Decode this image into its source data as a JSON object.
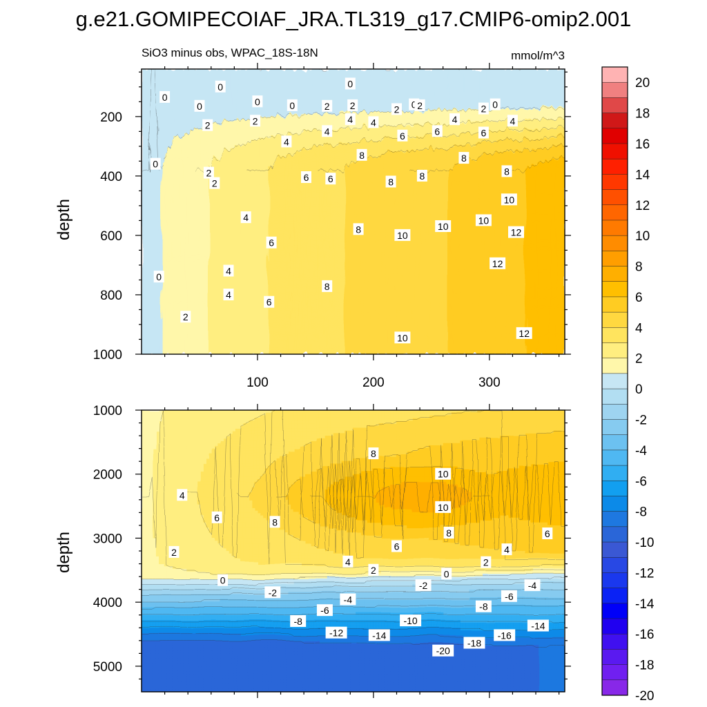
{
  "title": "g.e21.GOMIPECOIAF_JRA.TL319_g17.CMIP6-omip2.001",
  "chart_data": [
    {
      "type": "contour",
      "panel": "upper",
      "subtitle_left": "SiO3 minus obs, WPAC_18S-18N",
      "subtitle_right": "mmol/m^3",
      "ylabel": "depth",
      "xlabel": "",
      "xlim": [
        0,
        365
      ],
      "ylim": [
        1000,
        40
      ],
      "x_ticks": [
        "100",
        "200",
        "300"
      ],
      "y_ticks": [
        "200",
        "400",
        "600",
        "800",
        "1000"
      ],
      "contour_labels": [
        {
          "t": "0",
          "x": 68,
          "y": 100
        },
        {
          "t": "0",
          "x": 100,
          "y": 150
        },
        {
          "t": "0",
          "x": 180,
          "y": 90
        },
        {
          "t": "0",
          "x": 20,
          "y": 135
        },
        {
          "t": "0",
          "x": 50,
          "y": 165
        },
        {
          "t": "0",
          "x": 130,
          "y": 163
        },
        {
          "t": "0",
          "x": 235,
          "y": 160
        },
        {
          "t": "0",
          "x": 305,
          "y": 160
        },
        {
          "t": "0",
          "x": 12,
          "y": 360
        },
        {
          "t": "0",
          "x": 15,
          "y": 740
        },
        {
          "t": "2",
          "x": 160,
          "y": 165
        },
        {
          "t": "2",
          "x": 182,
          "y": 163
        },
        {
          "t": "2",
          "x": 220,
          "y": 176
        },
        {
          "t": "2",
          "x": 240,
          "y": 163
        },
        {
          "t": "2",
          "x": 295,
          "y": 174
        },
        {
          "t": "2",
          "x": 98,
          "y": 215
        },
        {
          "t": "2",
          "x": 57,
          "y": 230
        },
        {
          "t": "2",
          "x": 58,
          "y": 390
        },
        {
          "t": "2",
          "x": 63,
          "y": 425
        },
        {
          "t": "2",
          "x": 38,
          "y": 875
        },
        {
          "t": "4",
          "x": 125,
          "y": 285
        },
        {
          "t": "4",
          "x": 160,
          "y": 250
        },
        {
          "t": "4",
          "x": 180,
          "y": 210
        },
        {
          "t": "4",
          "x": 200,
          "y": 220
        },
        {
          "t": "4",
          "x": 270,
          "y": 210
        },
        {
          "t": "4",
          "x": 320,
          "y": 215
        },
        {
          "t": "4",
          "x": 90,
          "y": 540
        },
        {
          "t": "4",
          "x": 75,
          "y": 720
        },
        {
          "t": "4",
          "x": 75,
          "y": 800
        },
        {
          "t": "6",
          "x": 142,
          "y": 405
        },
        {
          "t": "6",
          "x": 163,
          "y": 410
        },
        {
          "t": "6",
          "x": 225,
          "y": 265
        },
        {
          "t": "6",
          "x": 255,
          "y": 250
        },
        {
          "t": "6",
          "x": 295,
          "y": 255
        },
        {
          "t": "6",
          "x": 112,
          "y": 625
        },
        {
          "t": "6",
          "x": 110,
          "y": 825
        },
        {
          "t": "8",
          "x": 190,
          "y": 330
        },
        {
          "t": "8",
          "x": 215,
          "y": 420
        },
        {
          "t": "8",
          "x": 242,
          "y": 400
        },
        {
          "t": "8",
          "x": 278,
          "y": 340
        },
        {
          "t": "8",
          "x": 315,
          "y": 385
        },
        {
          "t": "8",
          "x": 187,
          "y": 580
        },
        {
          "t": "8",
          "x": 160,
          "y": 772
        },
        {
          "t": "10",
          "x": 317,
          "y": 480
        },
        {
          "t": "10",
          "x": 295,
          "y": 550
        },
        {
          "t": "10",
          "x": 260,
          "y": 570
        },
        {
          "t": "10",
          "x": 225,
          "y": 600
        },
        {
          "t": "10",
          "x": 225,
          "y": 945
        },
        {
          "t": "12",
          "x": 323,
          "y": 590
        },
        {
          "t": "12",
          "x": 307,
          "y": 695
        },
        {
          "t": "12",
          "x": 330,
          "y": 930
        }
      ]
    },
    {
      "type": "contour",
      "panel": "lower",
      "ylabel": "depth",
      "xlabel": "",
      "xlim": [
        0,
        365
      ],
      "ylim": [
        5400,
        1000
      ],
      "x_ticks": [],
      "y_ticks": [
        "1000",
        "2000",
        "3000",
        "4000",
        "5000"
      ],
      "contour_labels": [
        {
          "t": "8",
          "x": 200,
          "y": 1680
        },
        {
          "t": "10",
          "x": 260,
          "y": 2000
        },
        {
          "t": "10",
          "x": 260,
          "y": 2520
        },
        {
          "t": "8",
          "x": 265,
          "y": 2920
        },
        {
          "t": "8",
          "x": 115,
          "y": 2750
        },
        {
          "t": "6",
          "x": 65,
          "y": 2680
        },
        {
          "t": "4",
          "x": 35,
          "y": 2330
        },
        {
          "t": "6",
          "x": 220,
          "y": 3130
        },
        {
          "t": "6",
          "x": 350,
          "y": 2930
        },
        {
          "t": "4",
          "x": 315,
          "y": 3180
        },
        {
          "t": "2",
          "x": 297,
          "y": 3380
        },
        {
          "t": "4",
          "x": 178,
          "y": 3370
        },
        {
          "t": "2",
          "x": 200,
          "y": 3500
        },
        {
          "t": "2",
          "x": 28,
          "y": 3220
        },
        {
          "t": "0",
          "x": 70,
          "y": 3660
        },
        {
          "t": "0",
          "x": 263,
          "y": 3560
        },
        {
          "t": "-2",
          "x": 113,
          "y": 3850
        },
        {
          "t": "-2",
          "x": 243,
          "y": 3740
        },
        {
          "t": "-4",
          "x": 178,
          "y": 3960
        },
        {
          "t": "-4",
          "x": 337,
          "y": 3740
        },
        {
          "t": "-6",
          "x": 158,
          "y": 4130
        },
        {
          "t": "-6",
          "x": 317,
          "y": 3910
        },
        {
          "t": "-8",
          "x": 135,
          "y": 4300
        },
        {
          "t": "-8",
          "x": 295,
          "y": 4070
        },
        {
          "t": "-10",
          "x": 232,
          "y": 4290
        },
        {
          "t": "-12",
          "x": 168,
          "y": 4480
        },
        {
          "t": "-14",
          "x": 205,
          "y": 4520
        },
        {
          "t": "-14",
          "x": 342,
          "y": 4370
        },
        {
          "t": "-16",
          "x": 313,
          "y": 4520
        },
        {
          "t": "-18",
          "x": 287,
          "y": 4640
        },
        {
          "t": "-20",
          "x": 260,
          "y": 4760
        }
      ]
    }
  ],
  "colorbar": {
    "levels": [
      "20",
      "18",
      "16",
      "14",
      "12",
      "10",
      "8",
      "6",
      "4",
      "2",
      "0",
      "-2",
      "-4",
      "-6",
      "-8",
      "-10",
      "-12",
      "-14",
      "-16",
      "-18",
      "-20"
    ],
    "colors": [
      "#FFB3B3",
      "#F08080",
      "#E04848",
      "#D01818",
      "#E00000",
      "#F01000",
      "#FF2000",
      "#FF3800",
      "#FF5000",
      "#FF6600",
      "#FF7A00",
      "#FF8C00",
      "#FF9E00",
      "#FFAF00",
      "#FFBF00",
      "#FFCC22",
      "#FFD840",
      "#FFE45E",
      "#FFEE80",
      "#FFF7AA",
      "#C6E6F4",
      "#B2DEF2",
      "#9ED4F0",
      "#86CBF0",
      "#6CC1F0",
      "#4FB8F2",
      "#30AEF2",
      "#129FF0",
      "#0C8AE8",
      "#1E78E0",
      "#2A66D8",
      "#3A58D4",
      "#2848E4",
      "#1A38EE",
      "#0A22F5",
      "#0000F8",
      "#2000F0",
      "#4010F0",
      "#5A1AF0",
      "#7020F0",
      "#8828E8"
    ]
  }
}
